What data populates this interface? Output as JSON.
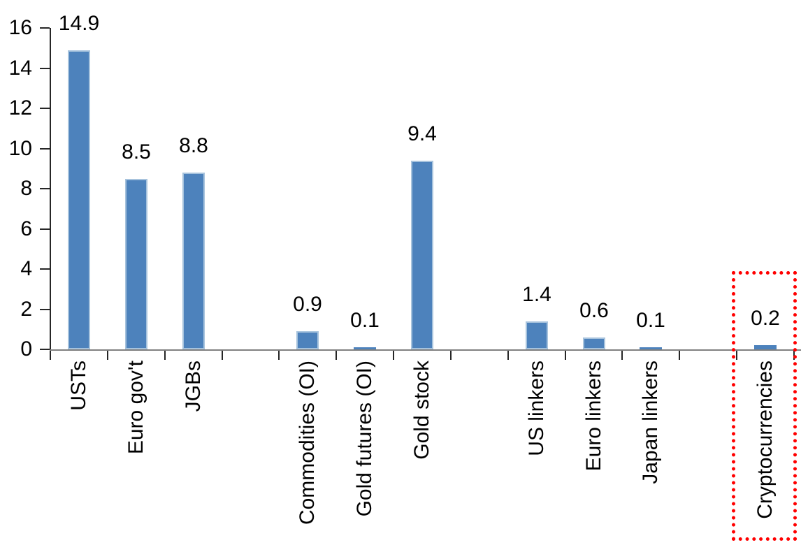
{
  "chart_data": {
    "type": "bar",
    "title": "",
    "categories": [
      "USTs",
      "Euro gov't",
      "JGBs",
      "Commodities (OI)",
      "Gold futures (OI)",
      "Gold stock",
      "US linkers",
      "Euro linkers",
      "Japan linkers",
      "Cryptocurrencies"
    ],
    "values": [
      14.9,
      8.5,
      8.8,
      0.9,
      0.1,
      9.4,
      1.4,
      0.6,
      0.1,
      0.2
    ],
    "data_labels": [
      "14.9",
      "8.5",
      "8.8",
      "0.9",
      "0.1",
      "9.4",
      "1.4",
      "0.6",
      "0.1",
      "0.2"
    ],
    "slot_index": [
      0,
      1,
      2,
      4,
      5,
      6,
      8,
      9,
      10,
      12
    ],
    "num_slots": 13,
    "xlabel": "",
    "ylabel": "",
    "ylim": [
      0,
      16
    ],
    "yticks": [
      0,
      2,
      4,
      6,
      8,
      10,
      12,
      14,
      16
    ],
    "grid": false,
    "legend": false,
    "x_label_rotation_deg": 90,
    "colors": {
      "bar_fill": "#4d82bc",
      "bar_border": "#a7c3dd",
      "x_axis_line": "#808080",
      "y_axis_line": "#262626",
      "tick": "#262626",
      "text": "#000000"
    },
    "highlight": {
      "category": "Cryptocurrencies",
      "shape": "dotted-rectangle",
      "color": "#ff0000"
    }
  }
}
